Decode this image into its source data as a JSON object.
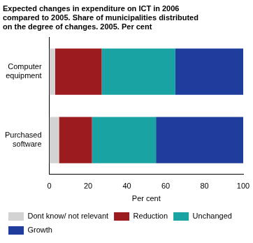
{
  "chart_data": {
    "type": "bar",
    "orientation": "horizontal",
    "stacked": true,
    "title": [
      "Expected changes in expenditure on ICT in 2006",
      "compared to 2005. Share of municipalities distributed",
      "on the degree of changes. 2005. Per cent"
    ],
    "x_label": "Per cent",
    "categories": [
      "Computer equipment",
      "Purchased software"
    ],
    "series": [
      {
        "name": "Dont know/ not relevant",
        "color": "#d3d3d3",
        "values": [
          3,
          5
        ]
      },
      {
        "name": "Reduction",
        "color": "#9b1b1e",
        "values": [
          24,
          17
        ]
      },
      {
        "name": "Unchanged",
        "color": "#1aa3a3",
        "values": [
          38,
          33
        ]
      },
      {
        "name": "Growth",
        "color": "#1f3d9c",
        "values": [
          35,
          45
        ]
      }
    ],
    "xlim": [
      0,
      100
    ],
    "xticks": [
      0,
      20,
      40,
      60,
      80,
      100
    ],
    "grid": false,
    "legend": "bottom"
  }
}
